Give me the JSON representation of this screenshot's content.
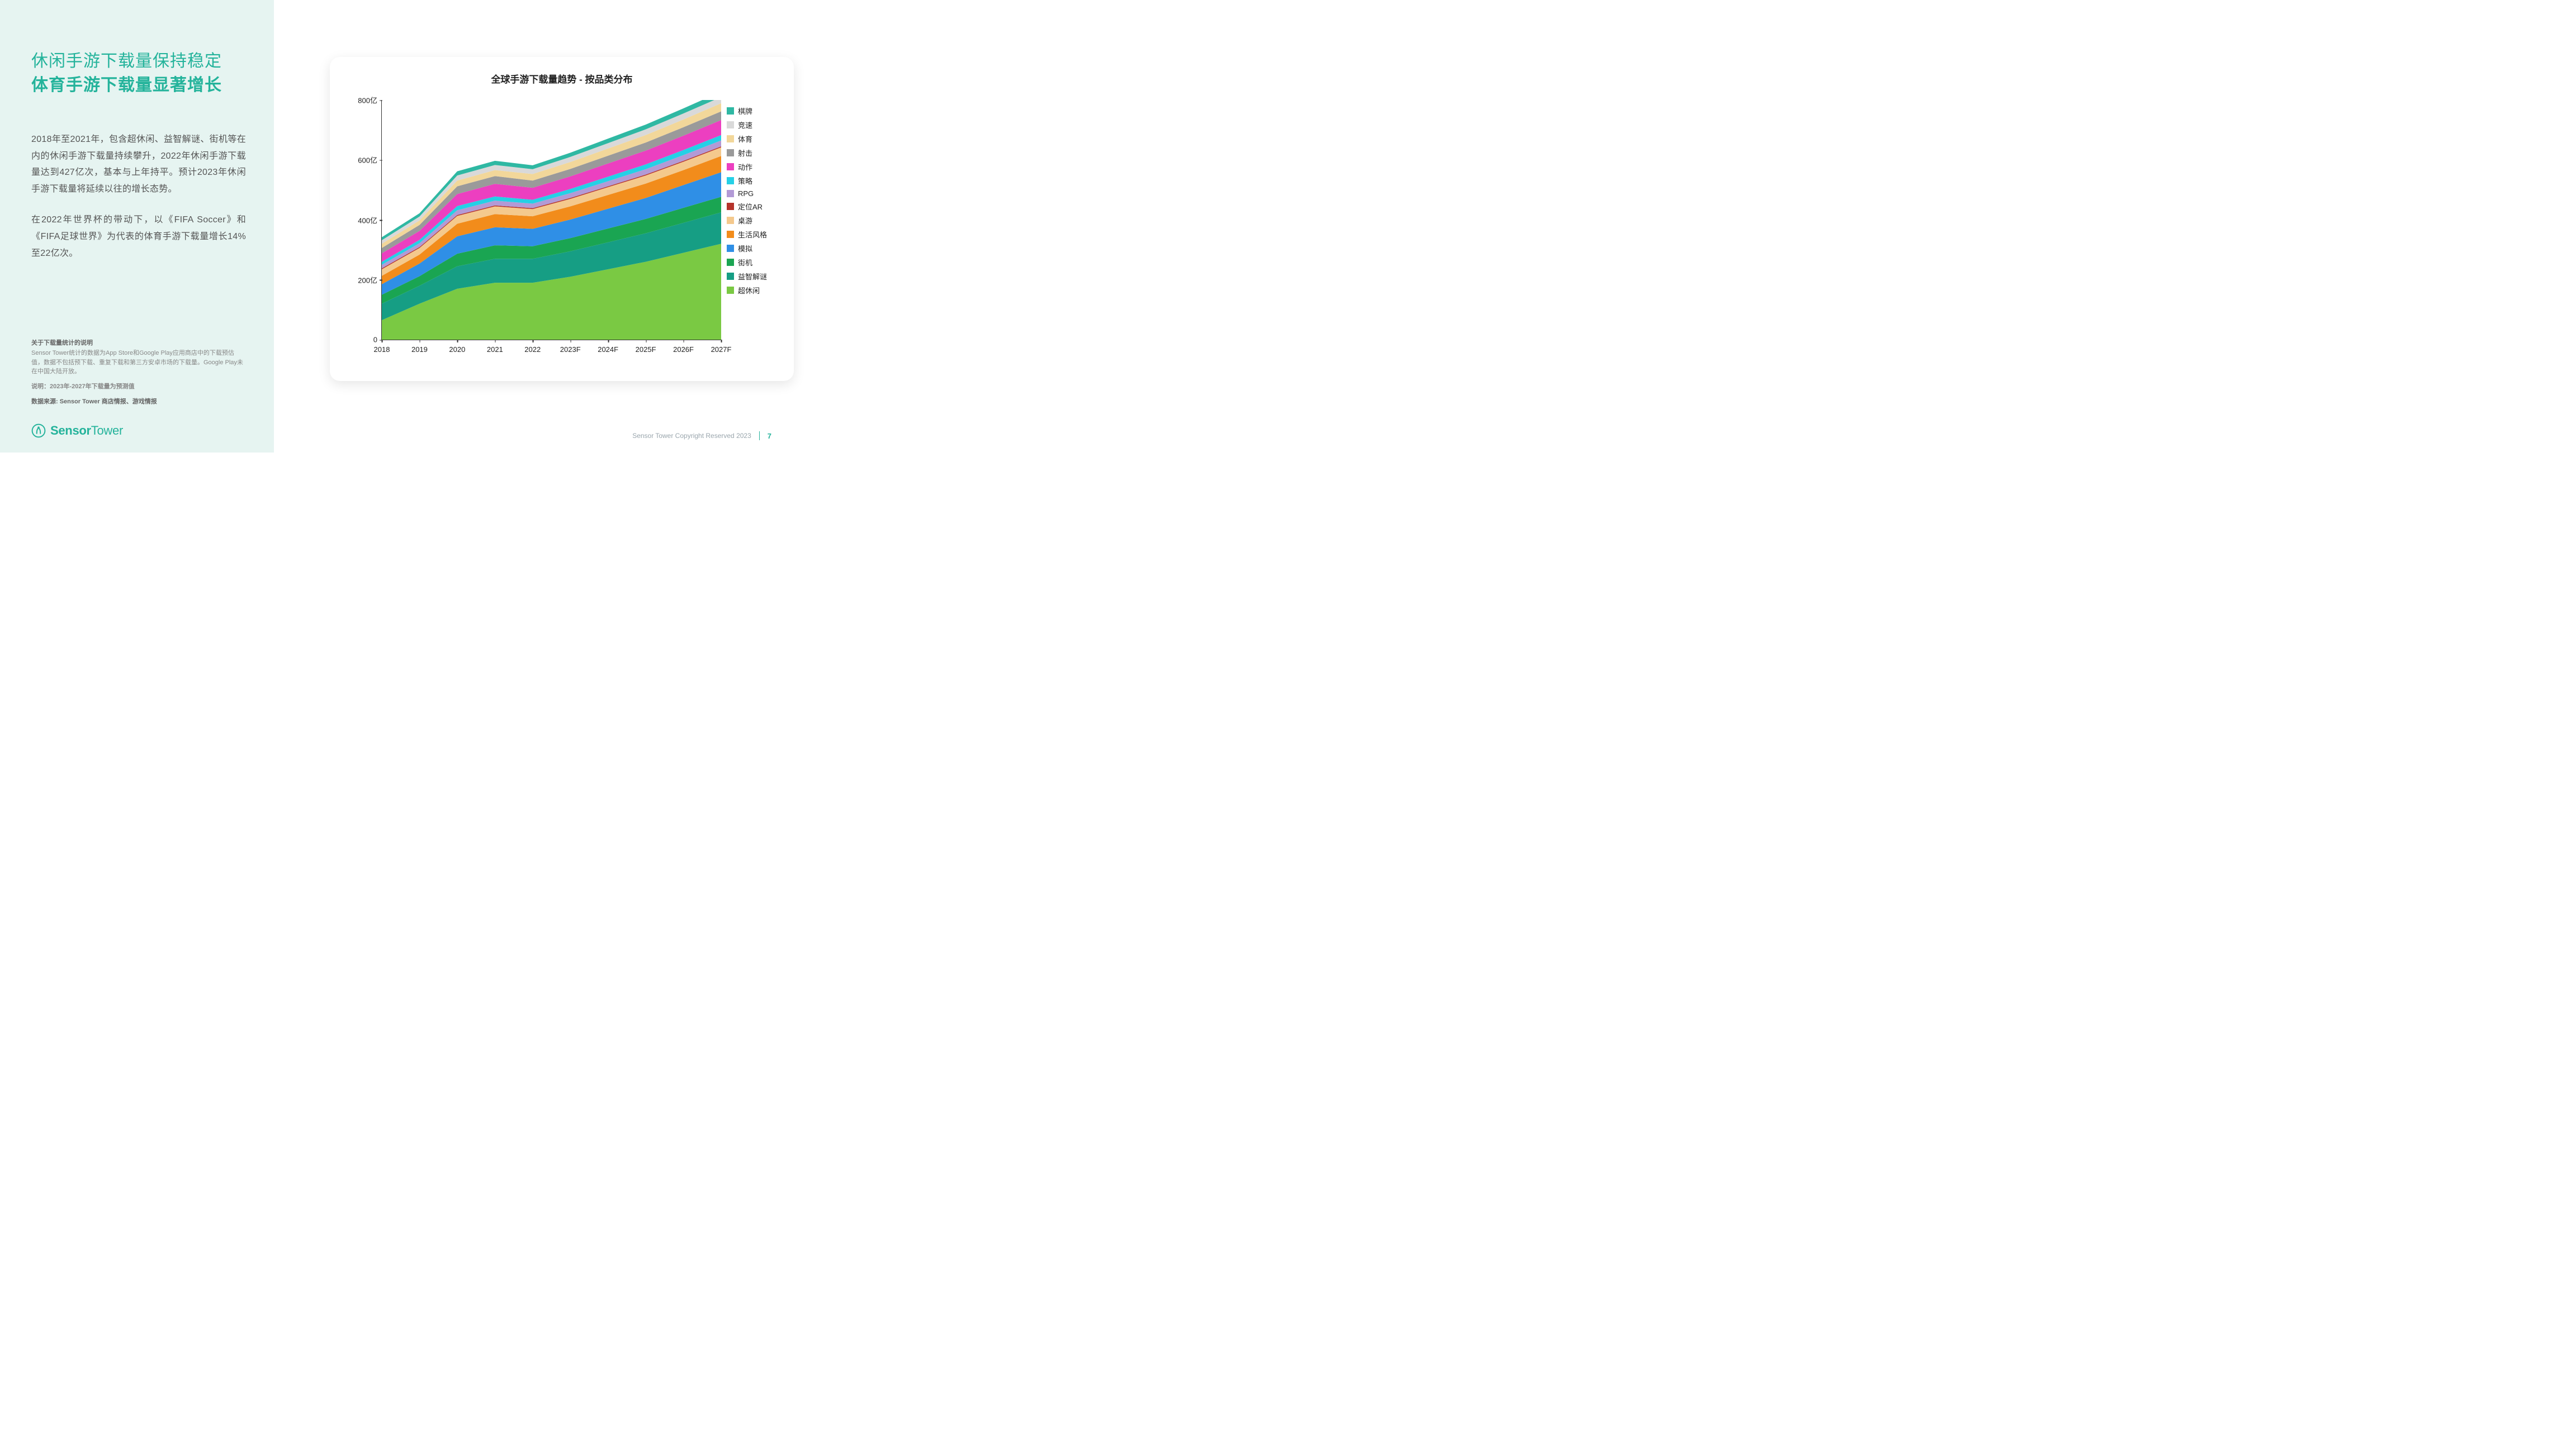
{
  "left": {
    "title_line1": "休闲手游下载量保持稳定",
    "title_line2": "体育手游下载量显著增长",
    "para1": "2018年至2021年，包含超休闲、益智解谜、街机等在内的休闲手游下载量持续攀升，2022年休闲手游下载量达到427亿次，基本与上年持平。预计2023年休闲手游下载量将延续以往的增长态势。",
    "para2": "在2022年世界杯的带动下，以《FIFA Soccer》和《FIFA足球世界》为代表的体育手游下载量增长14%至22亿次。",
    "fn_head": "关于下载量统计的说明",
    "fn_body": "Sensor Tower统计的数据为App Store和Google Play应用商店中的下载预估值，数据不包括预下载、重复下载和第三方安卓市场的下载量。Google Play未在中国大陆开放。",
    "fn_note": "说明：2023年-2027年下载量为预测值",
    "fn_src": "数据来源: Sensor Tower 商店情报、游戏情报",
    "logo_text_bold": "Sensor",
    "logo_text_thin": "Tower"
  },
  "footer": {
    "copyright": "Sensor Tower Copyright Reserved 2023",
    "page": "7"
  },
  "chart": {
    "type": "stacked-area",
    "title": "全球手游下载量趋势 - 按品类分布",
    "background_color": "#ffffff",
    "card_shadow": "0 6px 22px rgba(0,0,0,0.10)",
    "axis_color": "#333333",
    "tick_fontsize": 13,
    "title_fontsize": 17,
    "x_categories": [
      "2018",
      "2019",
      "2020",
      "2021",
      "2022",
      "2023F",
      "2024F",
      "2025F",
      "2026F",
      "2027F"
    ],
    "y_ticks": [
      0,
      200,
      400,
      600,
      800
    ],
    "y_tick_labels": [
      "0",
      "200亿",
      "400亿",
      "600亿",
      "800亿"
    ],
    "ylim": [
      0,
      800
    ],
    "legend_position": "right",
    "series": [
      {
        "name": "超休闲",
        "color": "#7ac943",
        "values": [
          65,
          120,
          170,
          190,
          190,
          210,
          235,
          260,
          290,
          320
        ]
      },
      {
        "name": "益智解谜",
        "color": "#169e84",
        "values": [
          55,
          60,
          75,
          80,
          80,
          85,
          90,
          95,
          100,
          105
        ]
      },
      {
        "name": "街机",
        "color": "#1aa552",
        "values": [
          30,
          32,
          42,
          45,
          42,
          44,
          46,
          48,
          50,
          52
        ]
      },
      {
        "name": "模拟",
        "color": "#2f8fe6",
        "values": [
          35,
          42,
          58,
          60,
          58,
          62,
          66,
          70,
          76,
          82
        ]
      },
      {
        "name": "生活风格",
        "color": "#f28c1b",
        "values": [
          28,
          30,
          42,
          44,
          42,
          44,
          46,
          48,
          50,
          54
        ]
      },
      {
        "name": "桌游",
        "color": "#f4c98d",
        "values": [
          22,
          22,
          26,
          26,
          24,
          25,
          26,
          27,
          28,
          29
        ]
      },
      {
        "name": "定位AR",
        "color": "#b5332b",
        "values": [
          3,
          3,
          3,
          3,
          3,
          3,
          3,
          3,
          3,
          3
        ]
      },
      {
        "name": "RPG",
        "color": "#b29ad6",
        "values": [
          12,
          13,
          16,
          16,
          15,
          16,
          17,
          18,
          19,
          20
        ]
      },
      {
        "name": "策略",
        "color": "#25d0e6",
        "values": [
          10,
          11,
          14,
          14,
          13,
          14,
          15,
          16,
          17,
          18
        ]
      },
      {
        "name": "动作",
        "color": "#ec3fc0",
        "values": [
          28,
          30,
          40,
          42,
          40,
          42,
          44,
          46,
          48,
          50
        ]
      },
      {
        "name": "射击",
        "color": "#9a9a9a",
        "values": [
          18,
          20,
          26,
          26,
          24,
          25,
          26,
          27,
          28,
          29
        ]
      },
      {
        "name": "体育",
        "color": "#f2d79a",
        "values": [
          14,
          15,
          19,
          20,
          22,
          23,
          24,
          25,
          26,
          27
        ]
      },
      {
        "name": "竞速",
        "color": "#d9d9d9",
        "values": [
          12,
          13,
          17,
          17,
          16,
          17,
          18,
          19,
          20,
          21
        ]
      },
      {
        "name": "棋牌",
        "color": "#2fb8a3",
        "values": [
          10,
          11,
          14,
          14,
          13,
          14,
          15,
          16,
          17,
          18
        ]
      }
    ]
  }
}
